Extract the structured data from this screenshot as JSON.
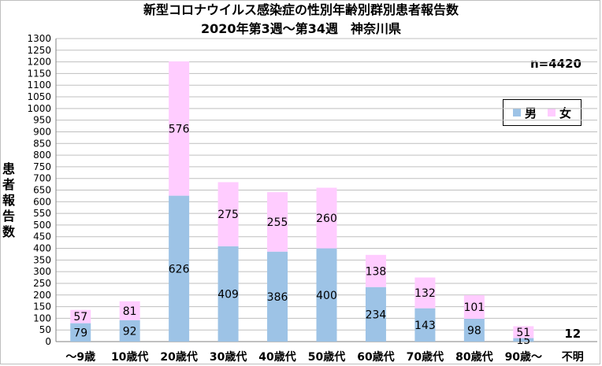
{
  "chart_data": {
    "type": "bar",
    "stacked": true,
    "title": "新型コロナウイルス感染症の性別年齢別群別患者報告数",
    "subtitle": "2020年第3週～第34週　神奈川県",
    "ylabel": "患者報告数",
    "xlabel": "",
    "annotation": "n=4420",
    "ylim": [
      0,
      1300
    ],
    "ytick_step": 50,
    "grid": true,
    "legend_position": "right",
    "categories": [
      "～9歳",
      "10歳代",
      "20歳代",
      "30歳代",
      "40歳代",
      "50歳代",
      "60歳代",
      "70歳代",
      "80歳代",
      "90歳～",
      "不明"
    ],
    "series": [
      {
        "name": "男",
        "color": "#9dc3e6",
        "values": [
          79,
          92,
          626,
          409,
          386,
          400,
          234,
          143,
          98,
          15,
          null
        ]
      },
      {
        "name": "女",
        "color": "#ffccff",
        "values": [
          57,
          81,
          576,
          275,
          255,
          260,
          138,
          132,
          101,
          51,
          null
        ]
      }
    ],
    "extra_labels": [
      {
        "category": "不明",
        "text": "12"
      }
    ]
  },
  "colors": {
    "male": "#9dc3e6",
    "female": "#ffccff",
    "grid": "#bfbfbf"
  }
}
